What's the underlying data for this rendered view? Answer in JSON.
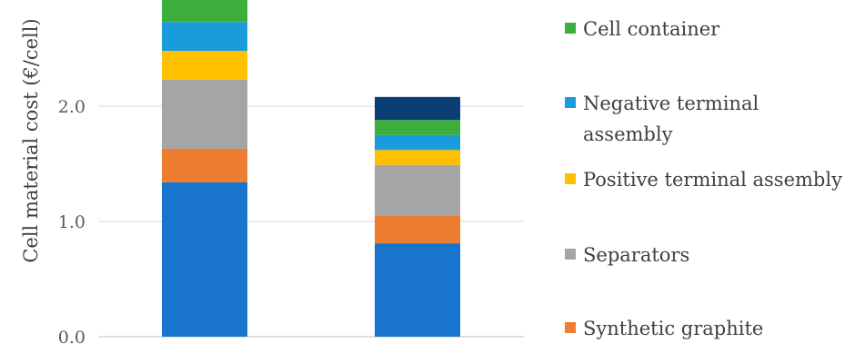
{
  "chart_data": {
    "type": "bar",
    "stacked": true,
    "title": "",
    "xlabel": "",
    "ylabel": "Cell material cost (€/cell)",
    "ylim": [
      0,
      2.9
    ],
    "yticks": [
      "0.0",
      "1.0",
      "2.0"
    ],
    "ytick_values": [
      0,
      1,
      2
    ],
    "categories": [
      "",
      ""
    ],
    "grid": true,
    "legend_position": "right",
    "series": [
      {
        "name": "Synthetic graphite",
        "color": "#ED7D31",
        "values": [
          0.29,
          0.24
        ]
      },
      {
        "name": "Separators",
        "color": "#A5A5A5",
        "values": [
          0.6,
          0.44
        ]
      },
      {
        "name": "Positive terminal assembly",
        "color": "#FFC000",
        "values": [
          0.25,
          0.13
        ]
      },
      {
        "name": "Negative terminal assembly",
        "color": "#1A9CDB",
        "values": [
          0.25,
          0.13
        ]
      },
      {
        "name": "Cell container",
        "color": "#3CAE3C",
        "values": [
          0.2,
          0.13
        ]
      }
    ],
    "unlabeled_segments": [
      {
        "color": "#1874CD",
        "values": [
          1.34,
          0.81
        ],
        "position": "bottom"
      },
      {
        "color": "#0B3F73",
        "values": [
          0.0,
          0.2
        ],
        "position": "top"
      }
    ],
    "legend_order": [
      "Cell container",
      "Negative terminal assembly",
      "Positive terminal assembly",
      "Separators",
      "Synthetic graphite"
    ]
  }
}
